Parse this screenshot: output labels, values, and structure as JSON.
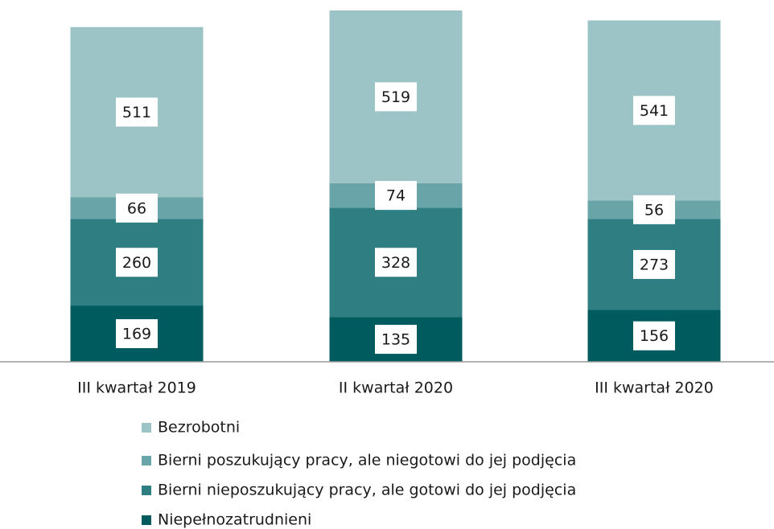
{
  "chart_data": {
    "type": "stacked_bar",
    "categories": [
      "III kwartał 2019",
      "II kwartał 2020",
      "III kwartał 2020"
    ],
    "series": [
      {
        "name": "Niepełnozatrudnieni",
        "color": "#005b5f",
        "values": [
          169,
          135,
          156
        ]
      },
      {
        "name": "Bierni nieposzukujący pracy, ale gotowi do jej podjęcia",
        "color": "#2f7e82",
        "values": [
          260,
          328,
          273
        ]
      },
      {
        "name": "Bierni poszukujący pracy, ale niegotowi do jej podjęcia",
        "color": "#69a5a8",
        "values": [
          66,
          74,
          56
        ]
      },
      {
        "name": "Bezrobotni",
        "color": "#9cc3c6",
        "values": [
          511,
          519,
          541
        ]
      }
    ]
  }
}
